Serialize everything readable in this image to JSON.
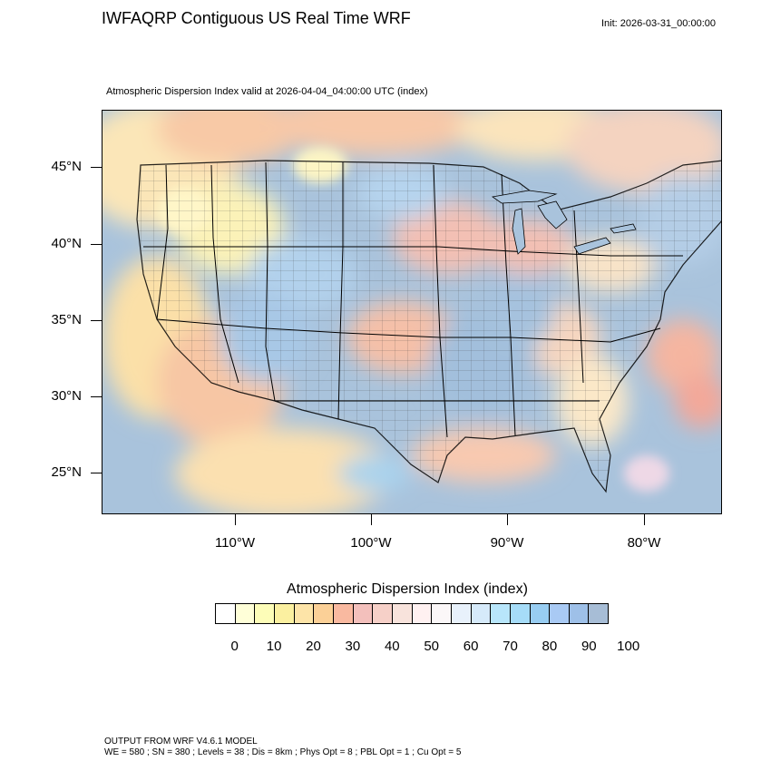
{
  "header": {
    "title": "IWFAQRP Contiguous US Real Time WRF",
    "init": "Init: 2026-03-31_00:00:00"
  },
  "plot": {
    "subtitle": "Atmospheric Dispersion Index valid at 2026-04-04_04:00:00 UTC   (index)"
  },
  "axes": {
    "lat_labels": [
      "45°N",
      "40°N",
      "35°N",
      "30°N",
      "25°N"
    ],
    "lon_labels": [
      "110°W",
      "100°W",
      "90°W",
      "80°W"
    ]
  },
  "colorbar": {
    "title": "Atmospheric Dispersion Index  (index)",
    "labels": [
      "0",
      "10",
      "20",
      "30",
      "40",
      "50",
      "60",
      "70",
      "80",
      "90",
      "100"
    ],
    "colors": [
      "#ffffff",
      "#ffffd8",
      "#fdfdb8",
      "#fbf0a0",
      "#fde4a8",
      "#fbd097",
      "#f9b9a0",
      "#f3c0bc",
      "#f6d0c8",
      "#f8e3dc",
      "#fff1f1",
      "#fbf7f8",
      "#e8f1fb",
      "#d6eafa",
      "#b8e6fb",
      "#a6dcf8",
      "#98cdf2",
      "#a9caf4",
      "#9ec0e8",
      "#a7bdd6"
    ]
  },
  "footer": {
    "line1": "OUTPUT FROM WRF V4.6.1 MODEL",
    "line2": "WE = 580 ; SN = 380 ; Levels = 38 ; Dis = 8km ; Phys Opt = 8 ; PBL Opt = 1 ; Cu Opt = 5"
  }
}
